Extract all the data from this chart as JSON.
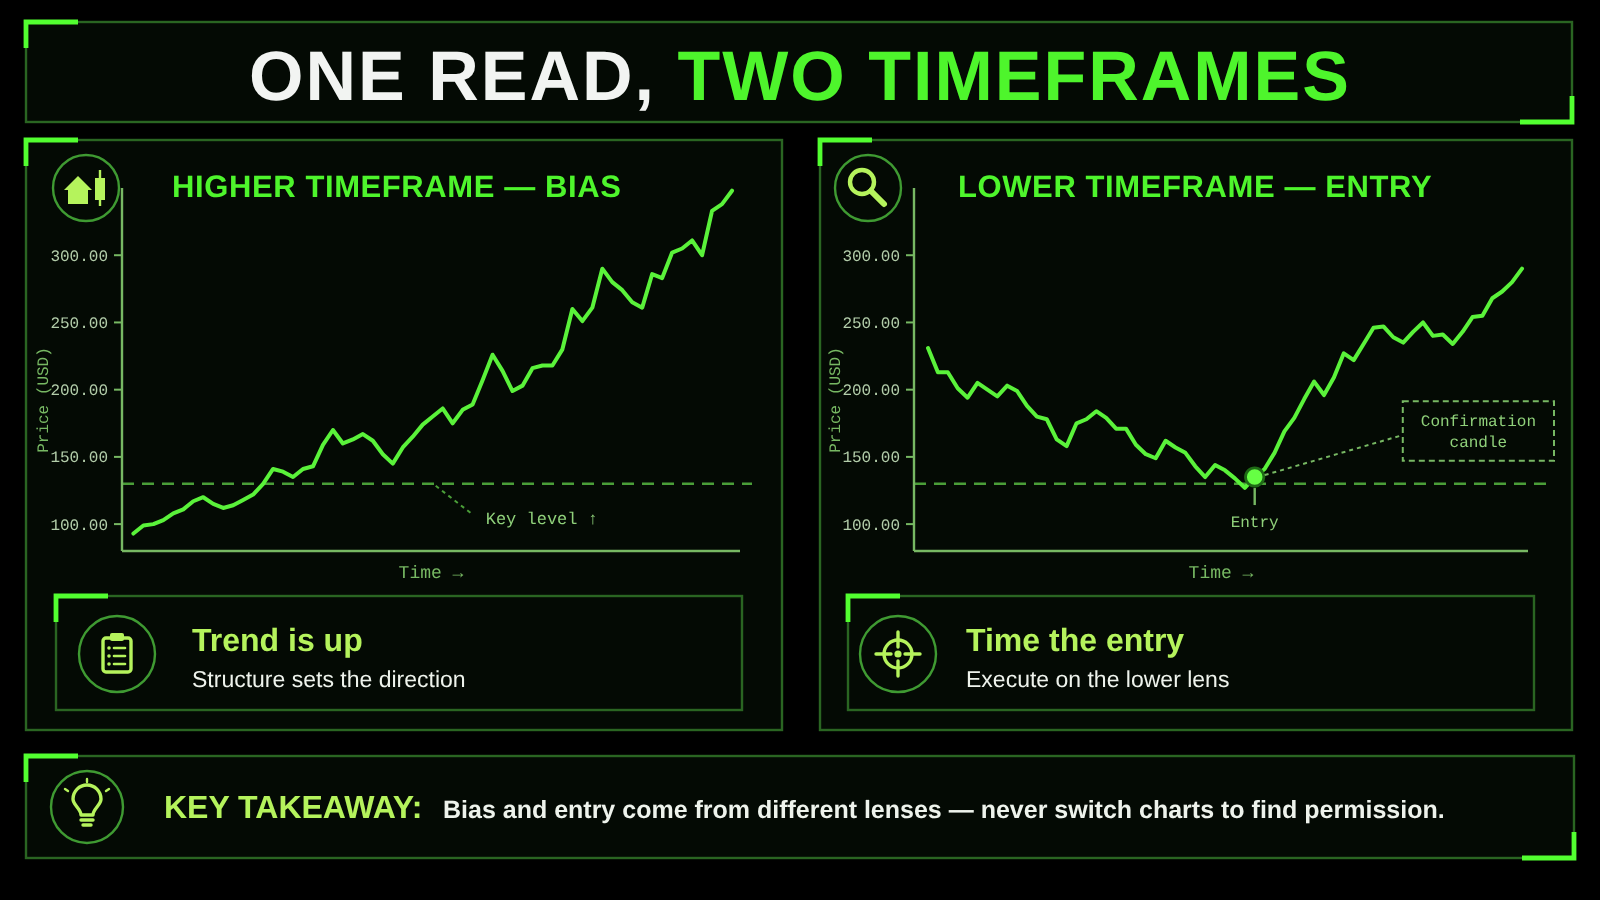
{
  "chart_data": [
    {
      "type": "other",
      "title": "ONE READ, TWO TIMEFRAMES"
    },
    {
      "type": "line",
      "title": "HIGHER TIMEFRAME — BIAS",
      "xlabel": "Time →",
      "ylabel": "Price (USD)",
      "categories": [
        null,
        null,
        null,
        null,
        null,
        null,
        null,
        null,
        null,
        null,
        null,
        null,
        null,
        null,
        null,
        null,
        null,
        null,
        null,
        null,
        null,
        null,
        null,
        null,
        null,
        null,
        null,
        null,
        null,
        null,
        null,
        null,
        null,
        null,
        null,
        null,
        null,
        null,
        null,
        null,
        null,
        null,
        null,
        null,
        null,
        null,
        null,
        null,
        null,
        null,
        null,
        null,
        null,
        null,
        null,
        null,
        null,
        null,
        null,
        null,
        null
      ],
      "series": [
        {
          "color": "#5af23a",
          "values": [
            93,
            99,
            100,
            103,
            108,
            111,
            117,
            120,
            115,
            112,
            114,
            118,
            122,
            130,
            141,
            139,
            135,
            141,
            143,
            159,
            170,
            160,
            163,
            167,
            162,
            152,
            145,
            157,
            165,
            174,
            180,
            186,
            175,
            185,
            189,
            207,
            226,
            214,
            199,
            203,
            216,
            218,
            218,
            230,
            260,
            251,
            261,
            290,
            280,
            274,
            265,
            261,
            286,
            283,
            302,
            305,
            311,
            300,
            333,
            338,
            348
          ]
        }
      ],
      "ylim": [
        80,
        350
      ],
      "yticks": [
        {
          "value": 100,
          "label": "100.00"
        },
        {
          "value": 150,
          "label": "150.00"
        },
        {
          "value": 200,
          "label": "200.00"
        },
        {
          "value": 250,
          "label": "250.00"
        },
        {
          "value": 300,
          "label": "300.00"
        }
      ],
      "ref_lines": [
        {
          "axis": "y",
          "value": 130,
          "label": "Key level ↑",
          "color": "#4a9e38",
          "line_style": "dashed"
        }
      ]
    },
    {
      "type": "line",
      "title": "LOWER TIMEFRAME — ENTRY",
      "xlabel": "Time →",
      "ylabel": "Price (USD)",
      "categories": [
        null,
        null,
        null,
        null,
        null,
        null,
        null,
        null,
        null,
        null,
        null,
        null,
        null,
        null,
        null,
        null,
        null,
        null,
        null,
        null,
        null,
        null,
        null,
        null,
        null,
        null,
        null,
        null,
        null,
        null,
        null,
        null,
        null,
        null,
        null,
        null,
        null,
        null,
        null,
        null,
        null,
        null,
        null,
        null,
        null,
        null,
        null,
        null,
        null,
        null,
        null,
        null,
        null,
        null,
        null,
        null,
        null,
        null,
        null,
        null,
        null
      ],
      "series": [
        {
          "color": "#5af23a",
          "values": [
            231,
            213,
            213,
            201,
            194,
            205,
            200,
            195,
            203,
            199,
            188,
            180,
            178,
            163,
            158,
            175,
            178,
            184,
            179,
            171,
            171,
            159,
            152,
            149,
            162,
            157,
            153,
            143,
            135,
            144,
            140,
            134,
            127,
            135,
            141,
            153,
            169,
            179,
            193,
            206,
            196,
            209,
            227,
            222,
            234,
            246,
            247,
            239,
            235,
            243,
            250,
            240,
            241,
            234,
            243,
            254,
            255,
            268,
            273,
            280,
            290
          ]
        },
        {
          "type": "scatter",
          "color": "#66ff44",
          "values": [
            null,
            null,
            null,
            null,
            null,
            null,
            null,
            null,
            null,
            null,
            null,
            null,
            null,
            null,
            null,
            null,
            null,
            null,
            null,
            null,
            null,
            null,
            null,
            null,
            null,
            null,
            null,
            null,
            null,
            null,
            null,
            null,
            null,
            135,
            null,
            null,
            null,
            null,
            null,
            null,
            null,
            null,
            null,
            null,
            null,
            null,
            null,
            null,
            null,
            null,
            null,
            null,
            null,
            null,
            null,
            null,
            null,
            null,
            null,
            null,
            null
          ]
        }
      ],
      "ylim": [
        80,
        350
      ],
      "yticks": [
        {
          "value": 100,
          "label": "100.00"
        },
        {
          "value": 150,
          "label": "150.00"
        },
        {
          "value": 200,
          "label": "200.00"
        },
        {
          "value": 250,
          "label": "250.00"
        },
        {
          "value": 300,
          "label": "300.00"
        }
      ],
      "ref_lines": [
        {
          "axis": "y",
          "value": 130,
          "color": "#4a9e38",
          "line_style": "dashed"
        }
      ],
      "annotations": [
        {
          "text": "Entry",
          "y": 135
        },
        {
          "text": "Confirmation candle",
          "y": 135
        }
      ]
    },
    {
      "type": "other",
      "title": "Trend is up",
      "annotations": [
        "Structure sets the direction"
      ]
    },
    {
      "type": "other",
      "title": "Time the entry",
      "annotations": [
        "Execute on the lower lens"
      ]
    },
    {
      "type": "other",
      "title": "KEY TAKEAWAY:",
      "annotations": [
        "Bias and entry come from different lenses — never switch charts to find permission."
      ]
    }
  ]
}
